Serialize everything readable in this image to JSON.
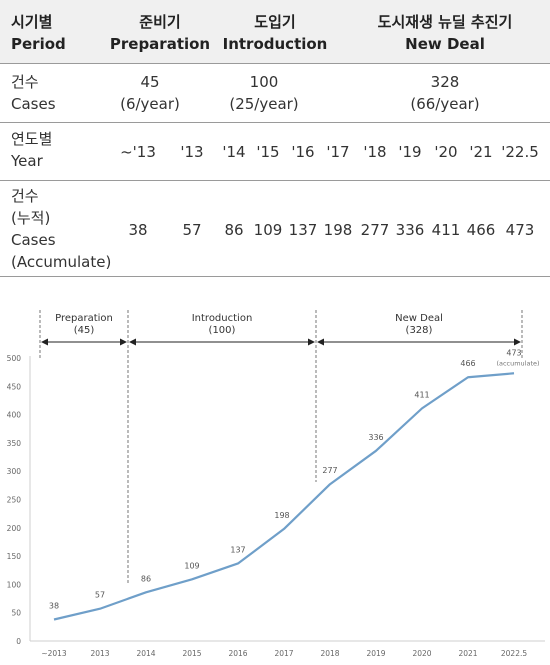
{
  "table": {
    "header": {
      "c1_ko": "시기별",
      "c1_en": "Period",
      "c2_ko": "준비기",
      "c2_en": "Preparation",
      "c3_ko": "도입기",
      "c3_en": "Introduction",
      "c4_ko": "도시재생 뉴딜 추진기",
      "c4_en": "New Deal"
    },
    "cases": {
      "label_ko": "건수",
      "label_en": "Cases",
      "prep_count": "45",
      "prep_rate": "(6/year)",
      "intro_count": "100",
      "intro_rate": "(25/year)",
      "deal_count": "328",
      "deal_rate": "(66/year)"
    },
    "year": {
      "label_ko": "연도별",
      "label_en": "Year",
      "values": [
        "~'13",
        "'13",
        "'14",
        "'15",
        "'16",
        "'17",
        "'18",
        "'19",
        "'20",
        "'21",
        "'22.5"
      ]
    },
    "accum": {
      "label_ko": "건수",
      "label_ko2": "(누적)",
      "label_en": "Cases",
      "label_en2": "(Accumulate)",
      "values": [
        "38",
        "57",
        "86",
        "109",
        "137",
        "198",
        "277",
        "336",
        "411",
        "466",
        "473"
      ]
    }
  },
  "chart_data": {
    "type": "line",
    "categories": [
      "~2013",
      "2013",
      "2014",
      "2015",
      "2016",
      "2017",
      "2018",
      "2019",
      "2020",
      "2021",
      "2022.5"
    ],
    "values": [
      38,
      57,
      86,
      109,
      137,
      198,
      277,
      336,
      411,
      466,
      473
    ],
    "data_labels": [
      "38",
      "57",
      "86",
      "109",
      "137",
      "198",
      "277",
      "336",
      "411",
      "466",
      "473"
    ],
    "last_label_note": "(accumulate)",
    "ylim": [
      0,
      500
    ],
    "yticks": [
      0,
      50,
      100,
      150,
      200,
      250,
      300,
      350,
      400,
      450,
      500
    ],
    "grid": false,
    "line_color": "#6f9fc9",
    "periods": [
      {
        "name": "Preparation",
        "count": "(45)",
        "from": "~2013",
        "to": "2013"
      },
      {
        "name": "Introduction",
        "count": "(100)",
        "from": "2013",
        "to": "2017"
      },
      {
        "name": "New Deal",
        "count": "(328)",
        "from": "2017",
        "to": "2022.5"
      }
    ]
  }
}
